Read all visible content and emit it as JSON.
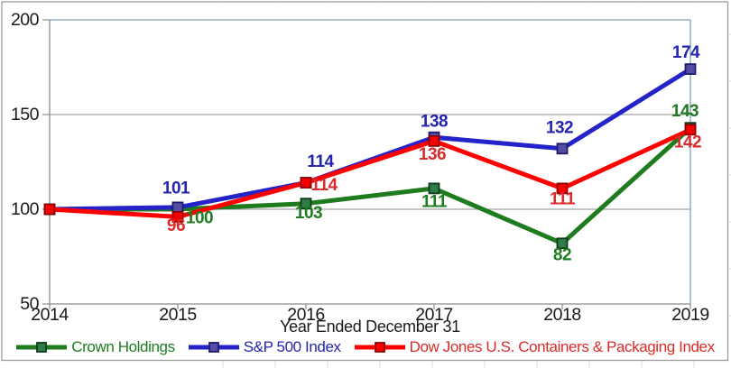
{
  "colors": {
    "outer_border": "#9b9b9b",
    "axis_line": "#8c8c8c",
    "gridline": "#8c8c8c",
    "plot_border_top_right": "#7f9dbe",
    "tick_label": "#1a1a1a",
    "edge_stub": "#d9d9d9",
    "background": "#ffffff"
  },
  "chart_data": {
    "type": "line",
    "title": "",
    "xlabel": "Year Ended December 31",
    "ylabel": "",
    "x": [
      2014,
      2015,
      2016,
      2017,
      2018,
      2019
    ],
    "x_tick_labels": [
      "2014",
      "2015",
      "2016",
      "2017",
      "2018",
      "2019"
    ],
    "ylim": [
      50,
      200
    ],
    "yticks": [
      200,
      150,
      100,
      50
    ],
    "y_tick_labels": [
      "200",
      "150",
      "100",
      "50"
    ],
    "grid": "horizontal",
    "legend_position": "bottom",
    "series": [
      {
        "name": "Crown Holdings",
        "line_color": "#1e7b1e",
        "label_color": "#1e7b1e",
        "marker_fill": "#2e7d46",
        "marker_stroke": "#10391b",
        "values": [
          100,
          100,
          103,
          111,
          82,
          143
        ],
        "point_labels": [
          "",
          "100",
          "103",
          "111",
          "82",
          "143"
        ],
        "label_offsets": [
          [
            0,
            0
          ],
          [
            24,
            10
          ],
          [
            3,
            11
          ],
          [
            0,
            15
          ],
          [
            0,
            13
          ],
          [
            -6,
            -18
          ]
        ]
      },
      {
        "name": "S&P 500 Index",
        "line_color": "#2323c9",
        "label_color": "#2424ad",
        "marker_fill": "#564ca4",
        "marker_stroke": "#1c1c6e",
        "values": [
          100,
          101,
          114,
          138,
          132,
          174
        ],
        "point_labels": [
          "",
          "101",
          "114",
          "138",
          "132",
          "174"
        ],
        "label_offsets": [
          [
            0,
            0
          ],
          [
            -2,
            -21
          ],
          [
            16,
            -23
          ],
          [
            0,
            -17
          ],
          [
            -3,
            -23
          ],
          [
            -5,
            -18
          ]
        ]
      },
      {
        "name": "Dow Jones U.S. Containers & Packaging Index",
        "line_color": "#fe0000",
        "label_color": "#d92b2b",
        "marker_fill": "#f60000",
        "marker_stroke": "#8f0000",
        "values": [
          100,
          96,
          114,
          136,
          111,
          142
        ],
        "point_labels": [
          "",
          "96",
          "114",
          "136",
          "111",
          "142"
        ],
        "label_offsets": [
          [
            0,
            0
          ],
          [
            -2,
            10
          ],
          [
            20,
            3
          ],
          [
            -2,
            15
          ],
          [
            0,
            12
          ],
          [
            -3,
            14
          ]
        ]
      }
    ]
  }
}
